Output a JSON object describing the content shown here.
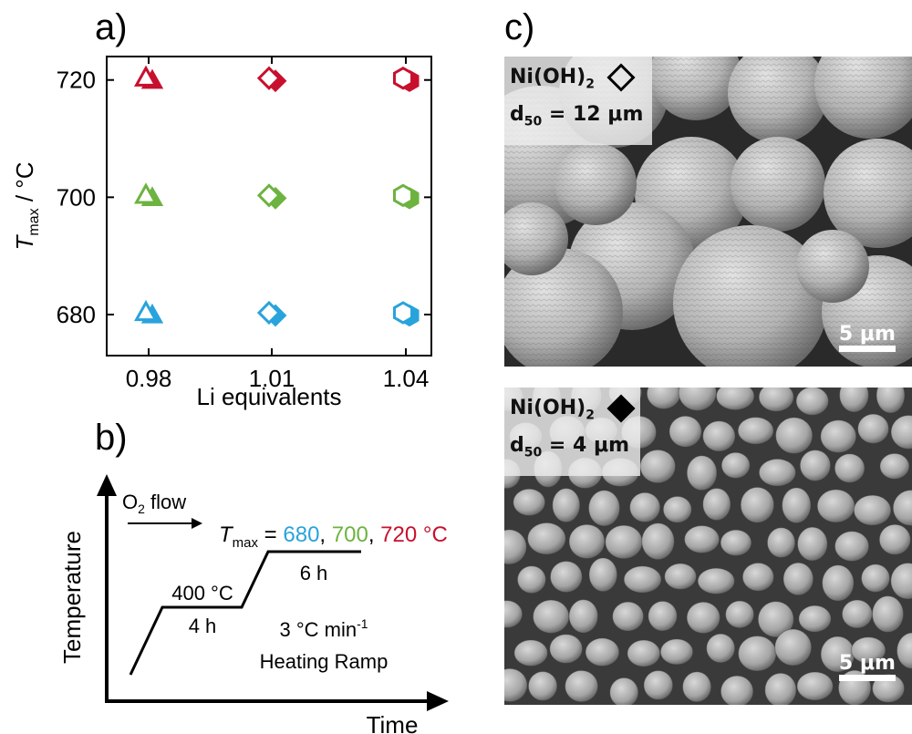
{
  "panels": {
    "a_label": "a)",
    "b_label": "b)",
    "c_label": "c)"
  },
  "chart_data": {
    "type": "scatter",
    "xlabel": "Li equivalents",
    "ylabel_main": "T",
    "ylabel_sub": "max",
    "ylabel_unit": " / °C",
    "categories": [
      "0.98",
      "1.01",
      "1.04"
    ],
    "y_ticks": [
      "680",
      "700",
      "720"
    ],
    "ylim": [
      673,
      724
    ],
    "grid": false,
    "markers": [
      "triangle",
      "diamond",
      "hexagon"
    ],
    "series": [
      {
        "color": "#c8102e",
        "y": 720,
        "values": [
          720,
          720,
          720
        ]
      },
      {
        "color": "#6db33f",
        "y": 700,
        "values": [
          700,
          700,
          700
        ]
      },
      {
        "color": "#29a3dc",
        "y": 680,
        "values": [
          680,
          680,
          680
        ]
      }
    ]
  },
  "schematic": {
    "y_axis": "Temperature",
    "x_axis": "Time",
    "o2_main": "O",
    "o2_sub": "2",
    "o2_rest": " flow",
    "tmax_main": "T",
    "tmax_sub": "max",
    "tmax_eq": " = ",
    "t680": "680",
    "t700": "700",
    "t720": "720",
    "sep": ", ",
    "unit": " °C",
    "step1_temp": "400 °C",
    "step1_time": "4 h",
    "step2_time": "6 h",
    "ramp_rate": "3 °C min",
    "ramp_exp": "-1",
    "ramp_label": "Heating Ramp",
    "colors": {
      "t680": "#29a3dc",
      "t700": "#6db33f",
      "t720": "#c8102e"
    }
  },
  "sem": {
    "top": {
      "formula_main": "Ni(OH)",
      "formula_sub": "2",
      "marker": "open-diamond",
      "d_main": "d",
      "d_sub": "50",
      "d_value": " = 12 μm",
      "scale": "5 μm"
    },
    "bottom": {
      "formula_main": "Ni(OH)",
      "formula_sub": "2",
      "marker": "filled-diamond",
      "d_main": "d",
      "d_sub": "50",
      "d_value": " = 4 μm",
      "scale": "5 μm"
    }
  }
}
